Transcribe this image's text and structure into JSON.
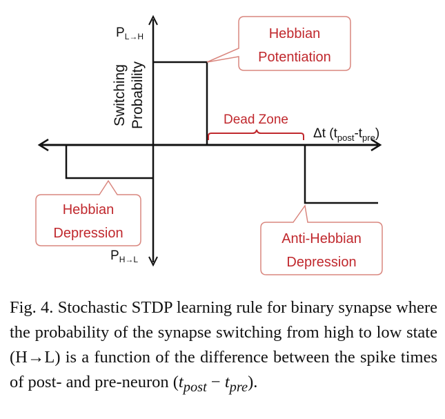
{
  "figure": {
    "y_axis_top_label": "P",
    "y_axis_top_subscript": "L→H",
    "y_axis_bottom_label": "P",
    "y_axis_bottom_subscript": "H→L",
    "y_axis_title_line1": "Switching",
    "y_axis_title_line2": "Probability",
    "x_axis_label_main": "Δt (t",
    "x_axis_label_sub1": "post",
    "x_axis_label_mid": "-t",
    "x_axis_label_sub2": "pre",
    "x_axis_label_end": ")",
    "callout_potentiation_line1": "Hebbian",
    "callout_potentiation_line2": "Potentiation",
    "callout_depression_line1": "Hebbian",
    "callout_depression_line2": "Depression",
    "callout_anti_line1": "Anti-Hebbian",
    "callout_anti_line2": "Depression",
    "dead_zone_label": "Dead Zone",
    "colors": {
      "callout_text": "#c0282d",
      "callout_border": "#d9867e",
      "lines": "#111111"
    }
  },
  "caption": {
    "prefix": "Fig. 4.",
    "text": "Stochastic STDP learning rule for binary synapse where the probability of the synapse switching from high to low state (H→L) is a function of the difference between the spike times of post- and pre-neuron (",
    "math_t1": "t",
    "math_sub1": "post",
    "math_op": " − ",
    "math_t2": "t",
    "math_sub2": "pre",
    "suffix": ")."
  }
}
